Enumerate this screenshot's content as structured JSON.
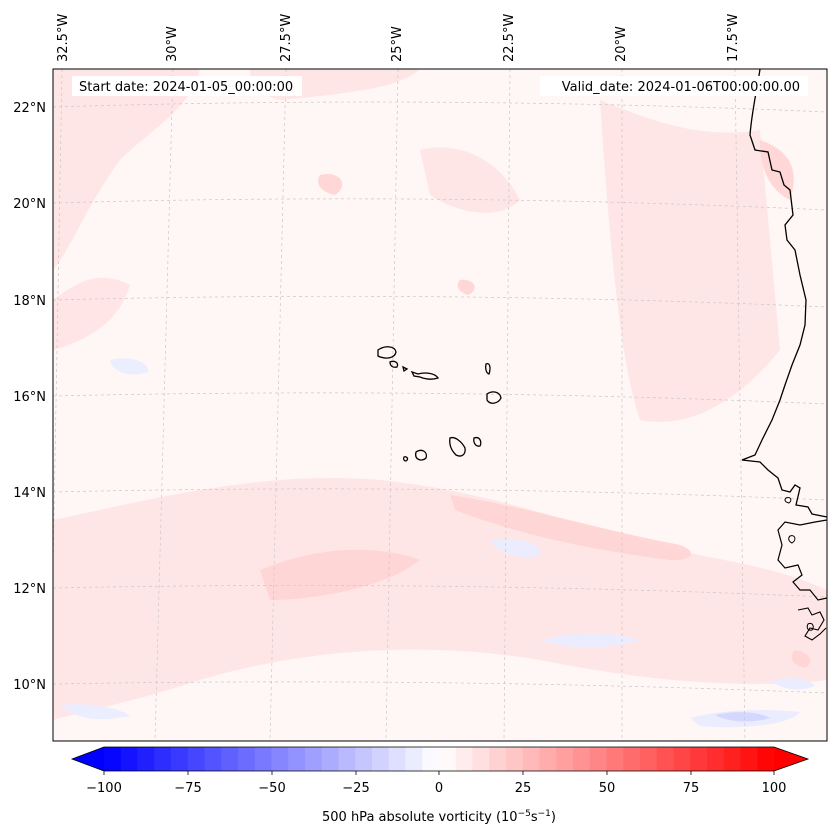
{
  "header": {
    "start_date": "Start date: 2024-01-05_00:00:00",
    "valid_date": "Valid_date: 2024-01-06T00:00:00.00"
  },
  "map": {
    "region": "Cape Verde / West African coast",
    "lon_labels": [
      "32.5°W",
      "30°W",
      "27.5°W",
      "25°W",
      "22.5°W",
      "20°W",
      "17.5°W"
    ],
    "lat_labels": [
      "22°N",
      "20°N",
      "18°N",
      "16°N",
      "14°N",
      "12°N",
      "10°N"
    ]
  },
  "colorbar": {
    "ticks": [
      "−100",
      "−75",
      "−50",
      "−25",
      "0",
      "25",
      "50",
      "75",
      "100"
    ],
    "label_main": "500 hPa absolute vorticity (10",
    "label_sup1": "−5",
    "label_mid": "s",
    "label_sup2": "−1",
    "label_end": ")",
    "min_color": "#0000ff",
    "mid_color": "#ffffff",
    "max_color": "#ff0000",
    "min": -100,
    "max": 100,
    "levels": 41
  },
  "colors": {
    "coastline": "#000000",
    "gridline": "#c8c8c8",
    "background_field": "#fff6f6"
  }
}
